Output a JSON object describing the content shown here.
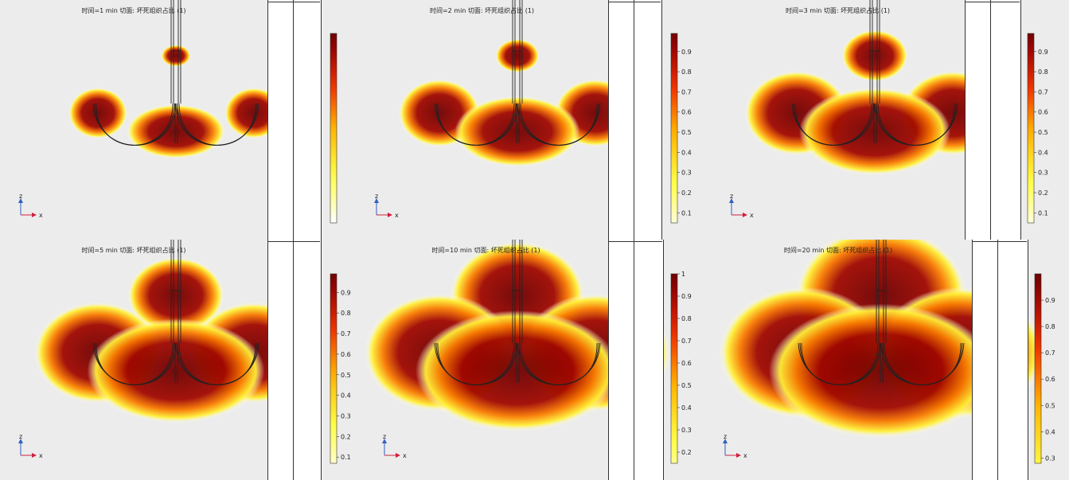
{
  "chart_data": [
    {
      "type": "heatmap",
      "title": "时间=1 min   切面: 坏死组织占比 (1)",
      "colorbar": {
        "min": 0,
        "max": 1,
        "ticks": [],
        "colormap": [
          "#ffffff",
          "#ffff40",
          "#ffb000",
          "#ff3000",
          "#a00000",
          "#600000"
        ]
      },
      "necrosis_level": 0.2
    },
    {
      "type": "heatmap",
      "title": "时间=2 min   切面: 坏死组织占比 (1)",
      "colorbar": {
        "min": 0.05,
        "max": 0.99,
        "ticks": [
          0.1,
          0.2,
          0.3,
          0.4,
          0.5,
          0.6,
          0.7,
          0.8,
          0.9
        ]
      },
      "necrosis_level": 0.35
    },
    {
      "type": "heatmap",
      "title": "时间=3 min   切面: 坏死组织占比 (1)",
      "colorbar": {
        "min": 0.05,
        "max": 0.99,
        "ticks": [
          0.1,
          0.2,
          0.3,
          0.4,
          0.5,
          0.6,
          0.7,
          0.8,
          0.9
        ]
      },
      "necrosis_level": 0.5
    },
    {
      "type": "heatmap",
      "title": "时间=5 min   切面: 坏死组织占比 (1)",
      "colorbar": {
        "min": 0.07,
        "max": 0.99,
        "ticks": [
          0.1,
          0.2,
          0.3,
          0.4,
          0.5,
          0.6,
          0.7,
          0.8,
          0.9
        ]
      },
      "necrosis_level": 0.65
    },
    {
      "type": "heatmap",
      "title": "时间=10 min   切面: 坏死组织占比 (1)",
      "colorbar": {
        "min": 0.15,
        "max": 1.0,
        "ticks": [
          0.2,
          0.3,
          0.4,
          0.5,
          0.6,
          0.7,
          0.8,
          0.9,
          1
        ]
      },
      "necrosis_level": 0.8
    },
    {
      "type": "heatmap",
      "title": "时间=20 min   切面: 坏死组织占比 (1)",
      "colorbar": {
        "min": 0.28,
        "max": 1.0,
        "ticks": [
          0.3,
          0.4,
          0.5,
          0.6,
          0.7,
          0.8,
          0.9
        ]
      },
      "necrosis_level": 0.92
    }
  ],
  "axes_triad": {
    "z": "z",
    "x": "x"
  }
}
